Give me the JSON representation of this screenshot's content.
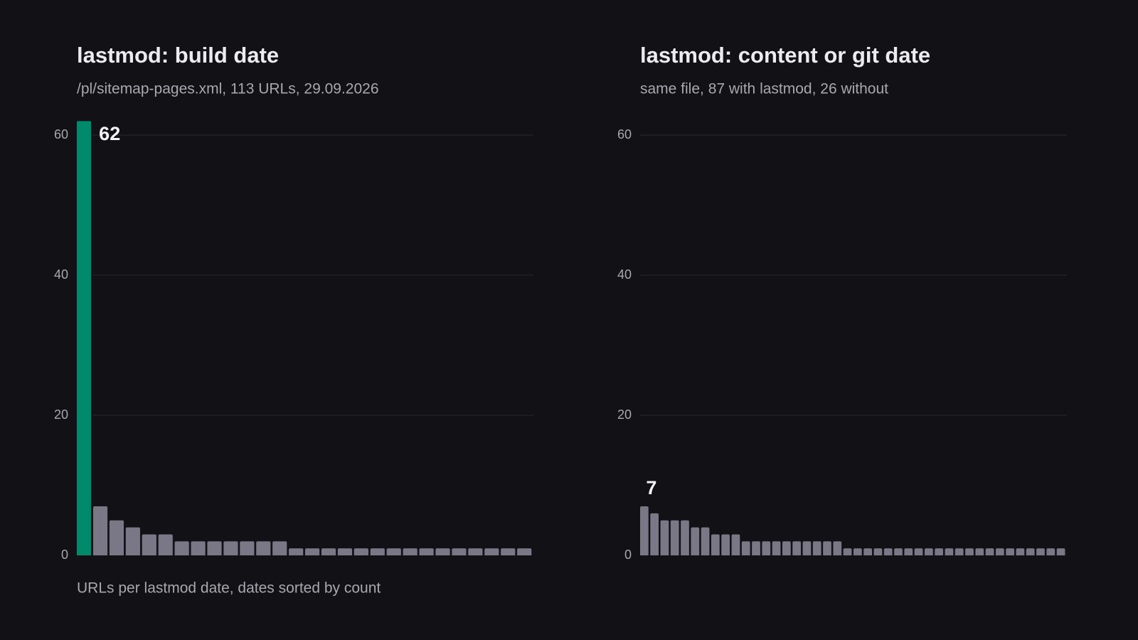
{
  "chart_data": [
    {
      "type": "bar",
      "title": "lastmod: build date",
      "subtitle": "/pl/sitemap-pages.xml, 113 URLs, 29.09.2026",
      "values": [
        62,
        7,
        5,
        4,
        3,
        3,
        2,
        2,
        2,
        2,
        2,
        2,
        2,
        1,
        1,
        1,
        1,
        1,
        1,
        1,
        1,
        1,
        1,
        1,
        1,
        1,
        1,
        1
      ],
      "color": "#7a7886",
      "highlight_color": "#00896a",
      "highlight_index": 0,
      "labeled_index": 0,
      "ylim": [
        0,
        60
      ],
      "yticks": [
        0,
        20,
        40,
        60
      ],
      "grid": true,
      "note": "URLs per lastmod date, dates sorted by count"
    },
    {
      "type": "bar",
      "title": "lastmod: content or git date",
      "subtitle": "same file, 87 with lastmod, 26 without",
      "values": [
        7,
        6,
        5,
        5,
        5,
        4,
        4,
        3,
        3,
        3,
        2,
        2,
        2,
        2,
        2,
        2,
        2,
        2,
        2,
        2,
        1,
        1,
        1,
        1,
        1,
        1,
        1,
        1,
        1,
        1,
        1,
        1,
        1,
        1,
        1,
        1,
        1,
        1,
        1,
        1,
        1,
        1
      ],
      "color": "#7a7886",
      "labeled_index": 0,
      "ylim": [
        0,
        60
      ],
      "yticks": [
        0,
        20,
        40,
        60
      ],
      "grid": true
    }
  ]
}
